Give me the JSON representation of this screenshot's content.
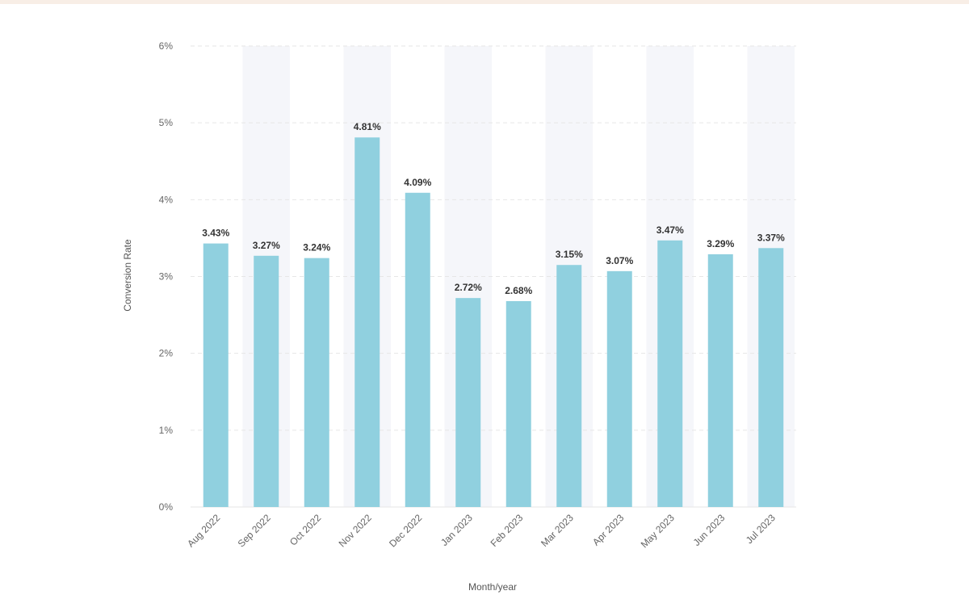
{
  "chart_data": {
    "type": "bar",
    "xlabel": "Month/year",
    "ylabel": "Conversion Rate",
    "ylim": [
      0,
      6
    ],
    "yticks": [
      "0%",
      "1%",
      "2%",
      "3%",
      "4%",
      "5%",
      "6%"
    ],
    "categories": [
      "Aug 2022",
      "Sep 2022",
      "Oct 2022",
      "Nov 2022",
      "Dec 2022",
      "Jan 2023",
      "Feb 2023",
      "Mar 2023",
      "Apr 2023",
      "May 2023",
      "Jun 2023",
      "Jul 2023"
    ],
    "values": [
      3.43,
      3.27,
      3.24,
      4.81,
      4.09,
      2.72,
      2.68,
      3.15,
      3.07,
      3.47,
      3.29,
      3.37
    ],
    "value_labels": [
      "3.43%",
      "3.27%",
      "3.24%",
      "4.81%",
      "4.09%",
      "2.72%",
      "2.68%",
      "3.15%",
      "3.07%",
      "3.47%",
      "3.29%",
      "3.37%"
    ],
    "grid": true,
    "alternating_band_color": "#f5f6fa",
    "bar_color": "#90d0df",
    "grid_color": "#e6e6e6"
  }
}
